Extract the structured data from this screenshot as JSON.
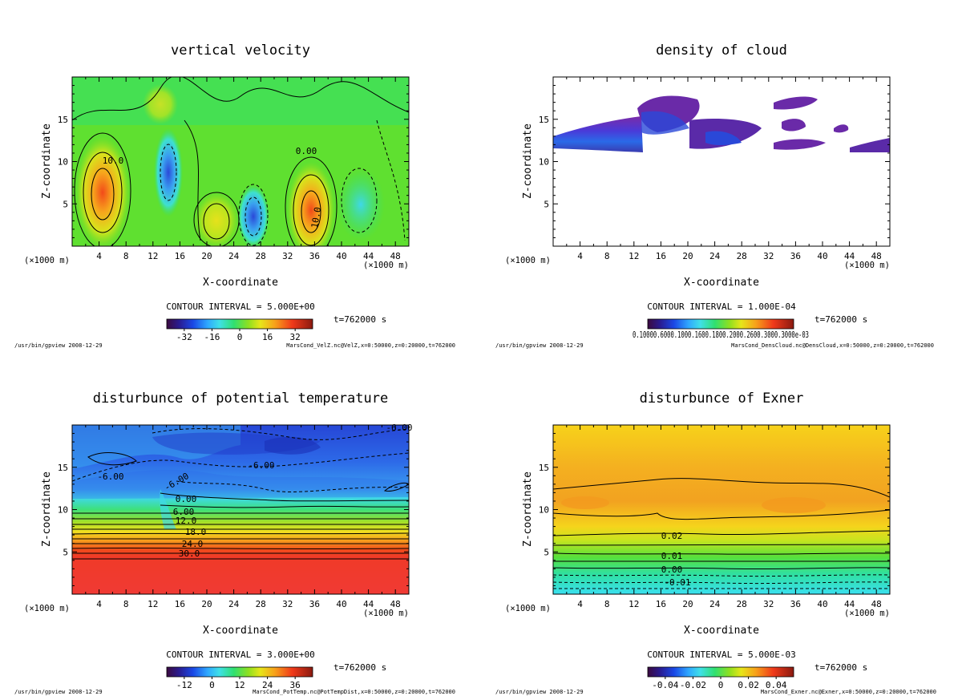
{
  "chart_data": [
    {
      "id": "velz",
      "type": "heatmap",
      "title": "vertical velocity",
      "xlabel": "X-coordinate",
      "ylabel": "Z-coordinate",
      "x_unit_left": "(×1000 m)",
      "x_unit_right": "(×1000 m)",
      "xticks": [
        4,
        8,
        12,
        16,
        20,
        24,
        28,
        32,
        36,
        40,
        44,
        48
      ],
      "yticks": [
        5,
        10,
        15
      ],
      "xlim": [
        0,
        50
      ],
      "ylim": [
        0,
        20
      ],
      "contour_interval": "CONTOUR INTERVAL = 5.000E+00",
      "time_label": "t=762000 s",
      "colorbar_ticks": [
        "-32",
        "-16",
        "0",
        "16",
        "32"
      ],
      "contour_labels": [
        "10.0",
        "0.00",
        "10.0"
      ],
      "footer_left": "/usr/bin/gpview  2008-12-29",
      "footer_right": "MarsCond_VelZ.nc@VelZ,x=0:50000,z=0:20000,t=762000",
      "features": [
        {
          "kind": "updraft",
          "x": 4.5,
          "z": 7,
          "peak": 30
        },
        {
          "kind": "downdraft",
          "x": 14.5,
          "z": 9,
          "peak": -15
        },
        {
          "kind": "updraft",
          "x": 21,
          "z": 3,
          "peak": 12
        },
        {
          "kind": "downdraft",
          "x": 27,
          "z": 3.5,
          "peak": -30
        },
        {
          "kind": "updraft",
          "x": 35.5,
          "z": 3.5,
          "peak": 35
        },
        {
          "kind": "downdraft",
          "x": 41,
          "z": 6,
          "peak": -8
        }
      ]
    },
    {
      "id": "denscloud",
      "type": "heatmap",
      "title": "density of cloud",
      "xlabel": "X-coordinate",
      "ylabel": "Z-coordinate",
      "x_unit_left": "(×1000 m)",
      "x_unit_right": "(×1000 m)",
      "xticks": [
        4,
        8,
        12,
        16,
        20,
        24,
        28,
        32,
        36,
        40,
        44,
        48
      ],
      "yticks": [
        5,
        10,
        15
      ],
      "xlim": [
        0,
        50
      ],
      "ylim": [
        0,
        20
      ],
      "contour_interval": "CONTOUR INTERVAL = 1.000E-04",
      "time_label": "t=762000 s",
      "colorbar_tick_text": "0.10000.6000.1000.1600.1800.2000.2600.3000.3000e-03",
      "footer_left": "/usr/bin/gpview  2008-12-29",
      "footer_right": "MarsCond_DensCloud.nc@DensCloud,x=0:50000,z=0:20000,t=762000",
      "features": [
        {
          "kind": "cloud-layer",
          "x_range": [
            0,
            13
          ],
          "z_range": [
            11,
            14
          ]
        },
        {
          "kind": "cloud-patch",
          "x_range": [
            13,
            22
          ],
          "z_range": [
            12,
            18
          ]
        },
        {
          "kind": "cloud-patch",
          "x_range": [
            20,
            29
          ],
          "z_range": [
            11.5,
            15
          ]
        },
        {
          "kind": "cloud-patch",
          "x_range": [
            32,
            40
          ],
          "z_range": [
            16,
            18
          ]
        },
        {
          "kind": "cloud-patch",
          "x_range": [
            37,
            43
          ],
          "z_range": [
            11.5,
            14
          ]
        },
        {
          "kind": "cloud-patch",
          "x_range": [
            44,
            50
          ],
          "z_range": [
            11,
            13
          ]
        }
      ]
    },
    {
      "id": "pottemp",
      "type": "heatmap",
      "title": "disturbunce of potential temperature",
      "xlabel": "X-coordinate",
      "ylabel": "Z-coordinate",
      "x_unit_left": "(×1000 m)",
      "x_unit_right": "(×1000 m)",
      "xticks": [
        4,
        8,
        12,
        16,
        20,
        24,
        28,
        32,
        36,
        40,
        44,
        48
      ],
      "yticks": [
        5,
        10,
        15
      ],
      "xlim": [
        0,
        50
      ],
      "ylim": [
        0,
        20
      ],
      "contour_interval": "CONTOUR INTERVAL = 3.000E+00",
      "time_label": "t=762000 s",
      "colorbar_ticks": [
        "-12",
        "0",
        "12",
        "24",
        "36"
      ],
      "contour_labels": [
        "-6.00",
        "-6.00",
        "-6.00",
        "-6.00",
        "0.00",
        "6.00",
        "12.0",
        "18.0",
        "24.0",
        "30.0"
      ],
      "footer_left": "/usr/bin/gpview  2008-12-29",
      "footer_right": "MarsCond_PotTemp.nc@PotTempDist,x=0:50000,z=0:20000,t=762000"
    },
    {
      "id": "exner",
      "type": "heatmap",
      "title": "disturbunce of Exner",
      "xlabel": "X-coordinate",
      "ylabel": "Z-coordinate",
      "x_unit_left": "(×1000 m)",
      "x_unit_right": "(×1000 m)",
      "xticks": [
        4,
        8,
        12,
        16,
        20,
        24,
        28,
        32,
        36,
        40,
        44,
        48
      ],
      "yticks": [
        5,
        10,
        15
      ],
      "xlim": [
        0,
        50
      ],
      "ylim": [
        0,
        20
      ],
      "contour_interval": "CONTOUR INTERVAL = 5.000E-03",
      "time_label": "t=762000 s",
      "colorbar_ticks": [
        "-0.04",
        "-0.02",
        "0",
        "0.02",
        "0.04"
      ],
      "contour_labels": [
        "0.02",
        "0.01",
        "0.00",
        "-0.01"
      ],
      "footer_left": "/usr/bin/gpview  2008-12-29",
      "footer_right": "MarsCond_Exner.nc@Exner,x=0:50000,z=0:20000,t=762000"
    }
  ]
}
